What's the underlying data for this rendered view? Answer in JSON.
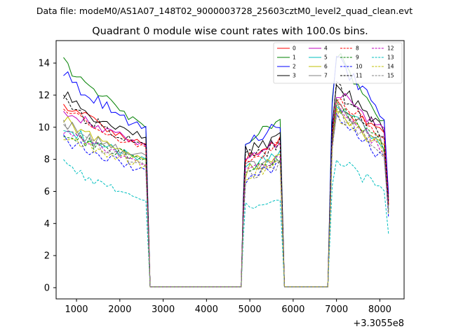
{
  "chart_data": {
    "type": "line",
    "suptitle": "Data file: modeM0/AS1A07_148T02_9000003728_25603cztM0_level2_quad_clean.evt",
    "title": "Quadrant 0 module wise count rates with 100.0s bins.",
    "xlabel": "",
    "ylabel": "",
    "offset_text": "+3.3055e8",
    "xlim": [
      530,
      8560
    ],
    "ylim": [
      -0.7,
      15.4
    ],
    "xticks": [
      1000,
      2000,
      3000,
      4000,
      5000,
      6000,
      7000,
      8000
    ],
    "yticks": [
      0,
      2,
      4,
      6,
      8,
      10,
      12,
      14
    ],
    "segments": [
      {
        "start": 700,
        "end": 2600
      },
      {
        "start": 4800,
        "end": 5750
      },
      {
        "start": 6800,
        "end": 8200
      }
    ],
    "gaps": [
      [
        2700,
        4800
      ],
      [
        5800,
        6800
      ]
    ],
    "series": [
      {
        "name": "0",
        "color": "#ff0000",
        "dashed": false,
        "levels": [
          11.6,
          8.8,
          11.4,
          9.5
        ]
      },
      {
        "name": "1",
        "color": "#008000",
        "dashed": false,
        "levels": [
          14.1,
          10.0,
          14.6,
          10.2
        ]
      },
      {
        "name": "2",
        "color": "#0000ff",
        "dashed": false,
        "levels": [
          13.4,
          9.8,
          14.3,
          10.6
        ]
      },
      {
        "name": "3",
        "color": "#000000",
        "dashed": false,
        "levels": [
          12.0,
          9.2,
          12.7,
          9.9
        ]
      },
      {
        "name": "4",
        "color": "#bf00bf",
        "dashed": false,
        "levels": [
          11.2,
          8.9,
          12.2,
          9.8
        ]
      },
      {
        "name": "5",
        "color": "#00bfbf",
        "dashed": false,
        "levels": [
          10.0,
          8.0,
          11.4,
          8.9
        ]
      },
      {
        "name": "6",
        "color": "#bfbf00",
        "dashed": false,
        "levels": [
          10.6,
          7.9,
          11.2,
          8.6
        ]
      },
      {
        "name": "7",
        "color": "#808080",
        "dashed": false,
        "levels": [
          10.2,
          8.0,
          11.5,
          8.8
        ]
      },
      {
        "name": "8",
        "color": "#ff0000",
        "dashed": true,
        "levels": [
          11.2,
          8.6,
          11.9,
          9.3
        ]
      },
      {
        "name": "9",
        "color": "#008000",
        "dashed": true,
        "levels": [
          9.7,
          7.9,
          11.5,
          8.8
        ]
      },
      {
        "name": "10",
        "color": "#0000ff",
        "dashed": true,
        "levels": [
          9.4,
          7.3,
          10.8,
          8.0
        ]
      },
      {
        "name": "11",
        "color": "#000000",
        "dashed": true,
        "levels": [
          11.6,
          8.7,
          12.4,
          9.4
        ]
      },
      {
        "name": "12",
        "color": "#bf00bf",
        "dashed": true,
        "levels": [
          9.8,
          7.8,
          11.2,
          8.6
        ]
      },
      {
        "name": "13",
        "color": "#00bfbf",
        "dashed": true,
        "levels": [
          7.7,
          5.6,
          7.9,
          6.1
        ]
      },
      {
        "name": "14",
        "color": "#bfbf00",
        "dashed": true,
        "levels": [
          9.5,
          7.6,
          10.8,
          8.4
        ]
      },
      {
        "name": "15",
        "color": "#808080",
        "dashed": true,
        "levels": [
          10.0,
          7.6,
          11.0,
          8.5
        ]
      }
    ],
    "legend": {
      "location": "upper right",
      "columns": 4
    },
    "grid": false
  }
}
